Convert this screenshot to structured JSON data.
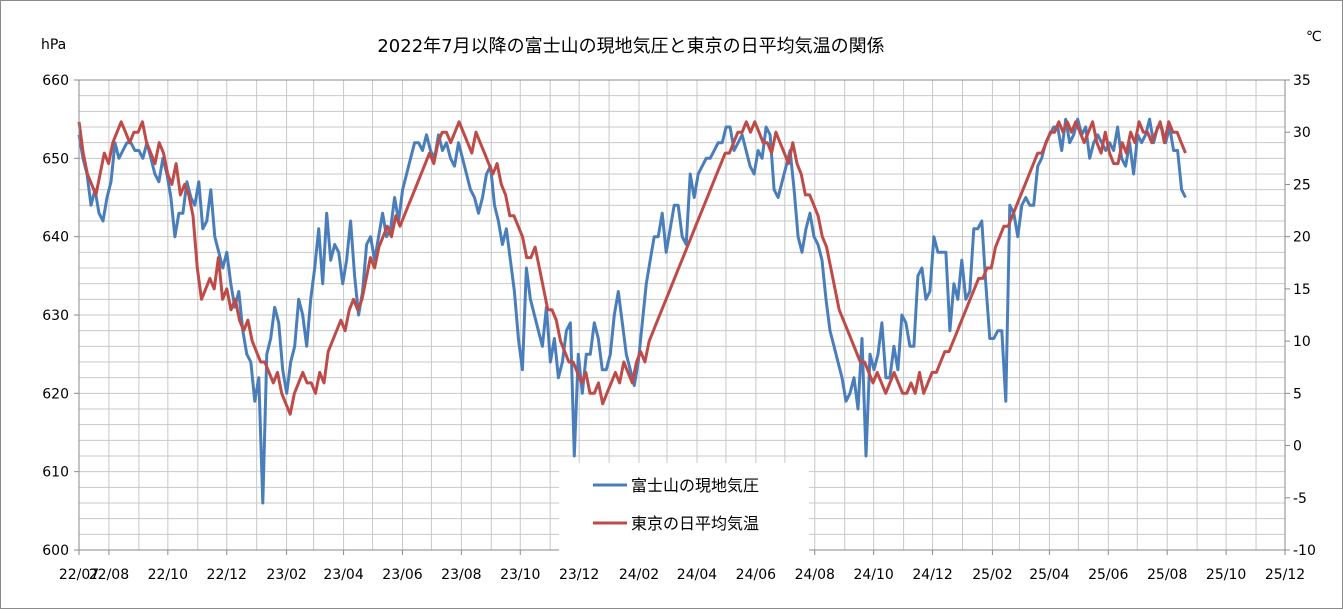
{
  "chart_data": {
    "type": "line",
    "title": "2022年7月以降の富士山の現地気圧と東京の日平均気温の関係",
    "y_left_unit": "hPa",
    "y_right_unit": "℃",
    "y_left_range": [
      600,
      660
    ],
    "y_right_range": [
      -10,
      35
    ],
    "y_left_ticks": [
      600,
      610,
      620,
      630,
      640,
      650,
      660
    ],
    "y_right_ticks": [
      -10,
      -5,
      0,
      5,
      10,
      15,
      20,
      25,
      30,
      35
    ],
    "x_ticks": [
      "22/07",
      "22/08",
      "22/10",
      "22/12",
      "23/02",
      "23/04",
      "23/06",
      "23/08",
      "23/10",
      "23/12",
      "24/02",
      "24/04",
      "24/06",
      "24/08",
      "24/10",
      "24/12",
      "25/02",
      "25/04",
      "25/06",
      "25/08",
      "25/10",
      "25/12"
    ],
    "grid": "on",
    "legend_position": "bottom-center",
    "series": [
      {
        "name": "富士山の現地気圧",
        "color": "#4a7ebb",
        "axis": "left",
        "x_start": "2022-07-01",
        "x_end": "2025-08-20",
        "values": [
          653,
          650,
          648,
          644,
          646,
          643,
          642,
          645,
          647,
          652,
          650,
          651,
          652,
          652,
          651,
          651,
          650,
          652,
          650,
          648,
          647,
          650,
          648,
          645,
          640,
          643,
          643,
          647,
          645,
          644,
          647,
          641,
          642,
          646,
          640,
          638,
          636,
          638,
          634,
          631,
          633,
          628,
          625,
          624,
          619,
          622,
          606,
          625,
          627,
          631,
          629,
          623,
          620,
          624,
          626,
          632,
          630,
          626,
          632,
          636,
          641,
          634,
          643,
          637,
          639,
          638,
          634,
          637,
          642,
          635,
          630,
          633,
          639,
          640,
          637,
          640,
          643,
          640,
          641,
          645,
          642,
          646,
          648,
          650,
          652,
          652,
          651,
          653,
          651,
          650,
          653,
          651,
          652,
          650,
          649,
          652,
          650,
          648,
          646,
          645,
          643,
          645,
          648,
          649,
          644,
          642,
          639,
          641,
          637,
          633,
          627,
          623,
          636,
          632,
          630,
          628,
          626,
          631,
          624,
          627,
          622,
          624,
          628,
          629,
          612,
          625,
          620,
          625,
          625,
          629,
          627,
          623,
          623,
          625,
          630,
          633,
          629,
          625,
          623,
          621,
          624,
          629,
          634,
          637,
          640,
          640,
          643,
          638,
          641,
          644,
          644,
          640,
          639,
          648,
          645,
          648,
          649,
          650,
          650,
          651,
          652,
          652,
          654,
          654,
          651,
          652,
          653,
          651,
          649,
          648,
          651,
          650,
          654,
          653,
          646,
          645,
          647,
          649,
          651,
          646,
          640,
          638,
          641,
          643,
          640,
          639,
          637,
          632,
          628,
          626,
          624,
          622,
          619,
          620,
          622,
          618,
          627,
          612,
          625,
          623,
          625,
          629,
          622,
          622,
          626,
          623,
          630,
          629,
          626,
          626,
          635,
          636,
          632,
          633,
          640,
          638,
          638,
          638,
          628,
          634,
          632,
          637,
          632,
          633,
          641,
          641,
          642,
          634,
          627,
          627,
          628,
          628,
          619,
          644,
          643,
          640,
          644,
          645,
          644,
          644,
          649,
          650,
          652,
          653,
          654,
          654,
          651,
          655,
          652,
          653,
          655,
          653,
          654,
          650,
          652,
          653,
          652,
          651,
          652,
          651,
          654,
          650,
          649,
          652,
          648,
          653,
          652,
          653,
          655,
          652,
          654,
          654,
          652,
          654,
          651,
          651,
          646,
          645
        ]
      },
      {
        "name": "東京の日平均気温",
        "color": "#be4b48",
        "axis": "right",
        "x_start": "2022-07-01",
        "x_end": "2025-08-20",
        "values": [
          31,
          28,
          26,
          25,
          24,
          26,
          28,
          27,
          29,
          30,
          31,
          30,
          29,
          30,
          30,
          31,
          29,
          28,
          27,
          29,
          28,
          26,
          25,
          27,
          24,
          25,
          24,
          22,
          17,
          14,
          15,
          16,
          15,
          18,
          14,
          15,
          13,
          14,
          12,
          11,
          12,
          10,
          9,
          8,
          8,
          7,
          6,
          7,
          5,
          4,
          3,
          5,
          6,
          7,
          6,
          6,
          5,
          7,
          6,
          9,
          10,
          11,
          12,
          11,
          13,
          14,
          13,
          14,
          16,
          18,
          17,
          19,
          20,
          21,
          20,
          22,
          21,
          22,
          23,
          24,
          25,
          26,
          27,
          28,
          27,
          29,
          30,
          30,
          29,
          30,
          31,
          30,
          29,
          28,
          30,
          29,
          28,
          27,
          26,
          27,
          25,
          24,
          22,
          22,
          21,
          20,
          18,
          18,
          19,
          17,
          15,
          13,
          13,
          12,
          10,
          9,
          8,
          8,
          7,
          6,
          7,
          5,
          5,
          6,
          4,
          5,
          6,
          7,
          6,
          8,
          7,
          6,
          8,
          9,
          8,
          10,
          11,
          12,
          13,
          14,
          15,
          16,
          17,
          18,
          19,
          20,
          21,
          22,
          23,
          24,
          25,
          26,
          27,
          28,
          28,
          29,
          30,
          30,
          31,
          30,
          31,
          30,
          29,
          29,
          28,
          30,
          29,
          28,
          27,
          29,
          27,
          26,
          24,
          24,
          23,
          22,
          20,
          19,
          17,
          15,
          13,
          12,
          11,
          10,
          9,
          8,
          8,
          7,
          6,
          7,
          6,
          5,
          6,
          7,
          6,
          5,
          5,
          6,
          5,
          7,
          5,
          6,
          7,
          7,
          8,
          9,
          9,
          10,
          11,
          12,
          13,
          14,
          15,
          16,
          16,
          17,
          17,
          19,
          20,
          21,
          21,
          22,
          23,
          24,
          25,
          26,
          27,
          28,
          28,
          29,
          30,
          30,
          31,
          30,
          31,
          30,
          31,
          30,
          29,
          30,
          31,
          29,
          28,
          30,
          28,
          27,
          27,
          29,
          28,
          30,
          29,
          31,
          30,
          30,
          29,
          30,
          31,
          29,
          31,
          30,
          30,
          29,
          28
        ]
      }
    ]
  }
}
